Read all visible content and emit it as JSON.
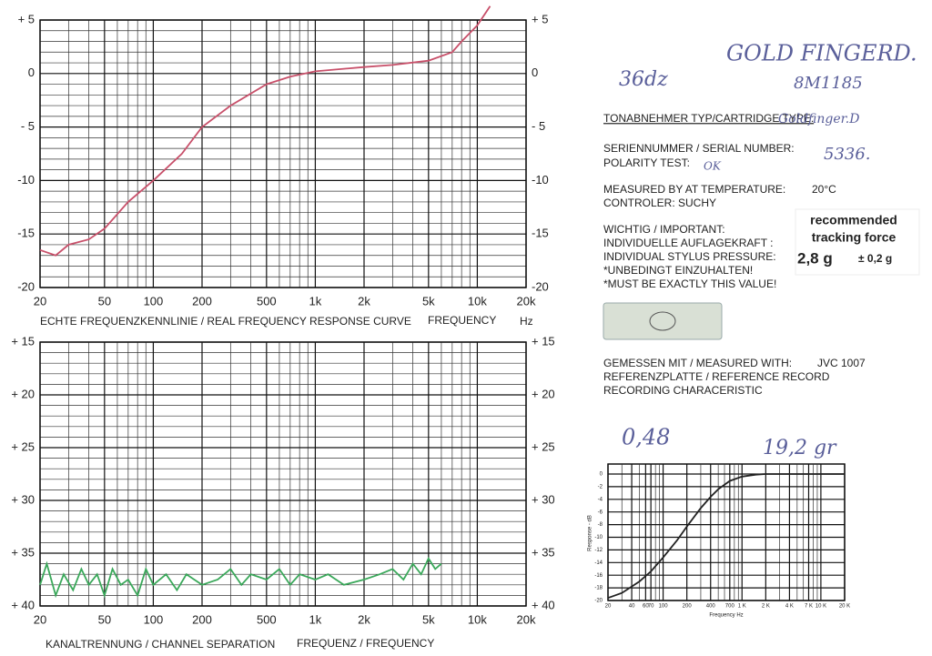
{
  "charts": [
    {
      "type": "line",
      "caption": "ECHTE FREQUENZKENNLINIE / REAL  FREQUENCY  RESPONSE CURVE",
      "xlabel": "FREQUENCY",
      "xunit": "Hz",
      "xlog": true,
      "xlim": [
        20,
        20000
      ],
      "xticks": [
        20,
        50,
        100,
        200,
        500,
        {
          "value": 1000,
          "label": "1k"
        },
        {
          "value": 2000,
          "label": "2k"
        },
        {
          "value": 5000,
          "label": "5k"
        },
        {
          "value": 10000,
          "label": "10k"
        },
        {
          "value": 20000,
          "label": "20k"
        }
      ],
      "ylim": [
        -20,
        5
      ],
      "yticks": [
        {
          "value": 5,
          "label": "+ 5"
        },
        0,
        {
          "value": -5,
          "label": "- 5"
        },
        -10,
        -15,
        -20
      ],
      "grid_x": [
        30,
        40,
        60,
        70,
        80,
        90,
        300,
        400,
        600,
        700,
        800,
        900,
        3000,
        4000,
        6000,
        7000,
        8000,
        9000
      ],
      "grid_y": [
        -19,
        -18,
        -17,
        -16,
        -14,
        -13,
        -12,
        -11,
        -9,
        -8,
        -7,
        -6,
        -4,
        -3,
        -2,
        -1,
        1,
        2,
        3,
        4
      ],
      "series": [
        {
          "color": "#c8506a",
          "x": [
            20,
            25,
            30,
            40,
            50,
            70,
            100,
            150,
            200,
            300,
            500,
            700,
            1000,
            2000,
            3000,
            5000,
            7000,
            8000,
            10000,
            12000
          ],
          "values": [
            -16.5,
            -17,
            -16,
            -15.5,
            -14.5,
            -12,
            -10,
            -7.5,
            -5,
            -3,
            -1,
            -0.3,
            0.2,
            0.6,
            0.8,
            1.2,
            2,
            3,
            4.5,
            6.3
          ]
        }
      ]
    },
    {
      "type": "line",
      "caption": "KANALTRENNUNG / CHANNEL  SEPARATION",
      "xlabel": "FREQUENZ / FREQUENCY",
      "xlog": true,
      "xlim": [
        20,
        20000
      ],
      "xticks": [
        20,
        50,
        100,
        200,
        500,
        {
          "value": 1000,
          "label": "1k"
        },
        {
          "value": 2000,
          "label": "2k"
        },
        {
          "value": 5000,
          "label": "5k"
        },
        {
          "value": 10000,
          "label": "10k"
        },
        {
          "value": 20000,
          "label": "20k"
        }
      ],
      "ylim": [
        40,
        15
      ],
      "yticks": [
        {
          "value": 15,
          "label": "+ 15"
        },
        {
          "value": 20,
          "label": "+ 20"
        },
        {
          "value": 25,
          "label": "+ 25"
        },
        {
          "value": 30,
          "label": "+ 30"
        },
        {
          "value": 35,
          "label": "+ 35"
        },
        {
          "value": 40,
          "label": "+ 40"
        }
      ],
      "grid_x": [
        30,
        40,
        60,
        70,
        80,
        90,
        300,
        400,
        600,
        700,
        800,
        900,
        3000,
        4000,
        6000,
        7000,
        8000,
        9000
      ],
      "grid_y": [
        16,
        17,
        18,
        19,
        21,
        22,
        23,
        24,
        26,
        27,
        28,
        29,
        31,
        32,
        33,
        34,
        36,
        37,
        38,
        39
      ],
      "series": [
        {
          "color": "#3aa85a",
          "x": [
            20,
            22,
            25,
            28,
            32,
            36,
            40,
            45,
            50,
            56,
            63,
            70,
            80,
            90,
            100,
            120,
            140,
            160,
            200,
            250,
            300,
            350,
            400,
            500,
            600,
            700,
            800,
            1000,
            1200,
            1500,
            2000,
            2500,
            3000,
            3500,
            4000,
            4500,
            5000,
            5500,
            6000
          ],
          "values": [
            38,
            36,
            39,
            37,
            38.5,
            36.5,
            38,
            37,
            39,
            36.5,
            38,
            37.5,
            39,
            36.5,
            38,
            37,
            38.5,
            37,
            38,
            37.5,
            36.5,
            38,
            37,
            37.5,
            36.5,
            38,
            37,
            37.5,
            37,
            38,
            37.5,
            37,
            36.5,
            37.5,
            36,
            37,
            35.5,
            36.5,
            36
          ]
        }
      ]
    },
    {
      "type": "line",
      "ylabel": "Response - dB",
      "xlabel": "Frequency  Hz",
      "xlog": true,
      "xlim": [
        20,
        20000
      ],
      "xticks": [
        20,
        40,
        60,
        70,
        100,
        200,
        400,
        700,
        {
          "value": 1000,
          "label": "1 K"
        },
        {
          "value": 2000,
          "label": "2 K"
        },
        {
          "value": 4000,
          "label": "4 K"
        },
        {
          "value": 7000,
          "label": "7 K"
        },
        {
          "value": 10000,
          "label": "10 K"
        },
        {
          "value": 20000,
          "label": "20 K"
        }
      ],
      "ylim": [
        -20,
        0
      ],
      "yticks": [
        0,
        -2,
        -4,
        -6,
        -8,
        -10,
        -12,
        -14,
        -16,
        -18,
        -20
      ],
      "grid_x": [
        30,
        50,
        80,
        90,
        300,
        500,
        600,
        800,
        900,
        3000,
        5000,
        6000,
        8000,
        9000
      ],
      "grid_y": [],
      "series": [
        {
          "color": "#222222",
          "x": [
            20,
            30,
            50,
            70,
            100,
            150,
            200,
            300,
            400,
            500,
            700,
            1000,
            1500,
            2000,
            3000,
            20000
          ],
          "values": [
            -19.6,
            -18.8,
            -17,
            -15.4,
            -13.2,
            -10.5,
            -8.3,
            -5.4,
            -3.6,
            -2.4,
            -1.1,
            -0.4,
            -0.1,
            0,
            0,
            0
          ]
        }
      ]
    }
  ],
  "text": {
    "cartridge_label": "TONABNEHMER TYP/CARTRIDGE TYPE:",
    "cartridge_value": "Goldfinger.D",
    "serial_label": "SERIENNUMMER / SERIAL NUMBER:",
    "serial_value": "5336.",
    "polarity_label": "POLARITY TEST:",
    "polarity_value": "OK",
    "measured_label": "MEASURED BY AT TEMPERATURE:",
    "measured_value": "20°C",
    "controller": "CONTROLER: SUCHY",
    "important": "WICHTIG / IMPORTANT:",
    "force_de": "INDIVIDUELLE AUFLAGEKRAFT :",
    "force_en": "INDIVIDUAL STYLUS PRESSURE:",
    "must_de": "*UNBEDINGT EINZUHALTEN!",
    "must_en": "*MUST BE EXACTLY THIS VALUE!",
    "sticker_line1": "recommended",
    "sticker_line2": "tracking force",
    "sticker_value": "2,8 g",
    "sticker_tolerance": "± 0,2 g",
    "measured_with_label": "GEMESSEN MIT / MEASURED WITH:",
    "measured_with_value": "JVC  1007",
    "reference": "REFERENZPLATTE / REFERENCE RECORD",
    "recording": "RECORDING CHARACERISTIC"
  },
  "handwriting": {
    "top_left": "36dz",
    "name": "GOLD FINGERD.",
    "code": "8M1185",
    "value1": "0,48",
    "value2": "19,2 gr"
  }
}
